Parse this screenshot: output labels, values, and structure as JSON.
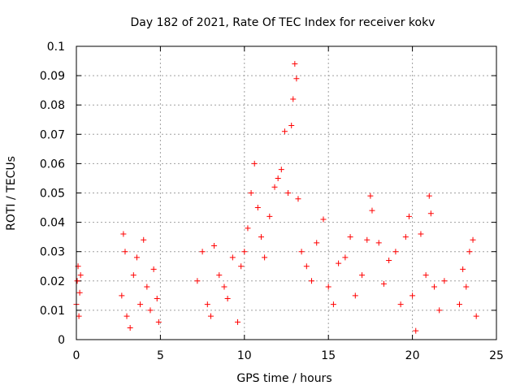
{
  "chart_data": {
    "type": "scatter",
    "title": "Day 182 of 2021, Rate Of TEC Index for receiver kokv",
    "xlabel": "GPS time / hours",
    "ylabel": "ROTI / TECUs",
    "xlim": [
      0,
      25
    ],
    "ylim": [
      0,
      0.1
    ],
    "xticks": [
      "0",
      "5",
      "10",
      "15",
      "20",
      "25"
    ],
    "yticks": [
      "0",
      "0.01",
      "0.02",
      "0.03",
      "0.04",
      "0.05",
      "0.06",
      "0.07",
      "0.08",
      "0.09",
      "0.1"
    ],
    "grid": true,
    "marker": "+",
    "color": "#ff0000",
    "series": [
      {
        "points": [
          [
            0.0,
            0.012
          ],
          [
            0.05,
            0.02
          ],
          [
            0.1,
            0.025
          ],
          [
            0.15,
            0.008
          ],
          [
            0.2,
            0.016
          ],
          [
            0.25,
            0.022
          ],
          [
            2.7,
            0.015
          ],
          [
            2.8,
            0.036
          ],
          [
            2.9,
            0.03
          ],
          [
            3.0,
            0.008
          ],
          [
            3.2,
            0.004
          ],
          [
            3.4,
            0.022
          ],
          [
            3.6,
            0.028
          ],
          [
            3.8,
            0.012
          ],
          [
            4.0,
            0.034
          ],
          [
            4.2,
            0.018
          ],
          [
            4.4,
            0.01
          ],
          [
            4.6,
            0.024
          ],
          [
            4.8,
            0.014
          ],
          [
            4.9,
            0.006
          ],
          [
            7.2,
            0.02
          ],
          [
            7.5,
            0.03
          ],
          [
            7.8,
            0.012
          ],
          [
            8.0,
            0.008
          ],
          [
            8.2,
            0.032
          ],
          [
            8.5,
            0.022
          ],
          [
            8.8,
            0.018
          ],
          [
            9.0,
            0.014
          ],
          [
            9.3,
            0.028
          ],
          [
            9.6,
            0.006
          ],
          [
            9.8,
            0.025
          ],
          [
            10.0,
            0.03
          ],
          [
            10.2,
            0.038
          ],
          [
            10.4,
            0.05
          ],
          [
            10.6,
            0.06
          ],
          [
            10.8,
            0.045
          ],
          [
            11.0,
            0.035
          ],
          [
            11.2,
            0.028
          ],
          [
            11.5,
            0.042
          ],
          [
            11.8,
            0.052
          ],
          [
            12.0,
            0.055
          ],
          [
            12.2,
            0.058
          ],
          [
            12.4,
            0.071
          ],
          [
            12.6,
            0.05
          ],
          [
            12.8,
            0.073
          ],
          [
            12.9,
            0.082
          ],
          [
            13.0,
            0.094
          ],
          [
            13.1,
            0.089
          ],
          [
            13.2,
            0.048
          ],
          [
            13.4,
            0.03
          ],
          [
            13.7,
            0.025
          ],
          [
            14.0,
            0.02
          ],
          [
            14.3,
            0.033
          ],
          [
            14.7,
            0.041
          ],
          [
            15.0,
            0.018
          ],
          [
            15.3,
            0.012
          ],
          [
            15.6,
            0.026
          ],
          [
            16.0,
            0.028
          ],
          [
            16.3,
            0.035
          ],
          [
            16.6,
            0.015
          ],
          [
            17.0,
            0.022
          ],
          [
            17.3,
            0.034
          ],
          [
            17.5,
            0.049
          ],
          [
            17.6,
            0.044
          ],
          [
            18.0,
            0.033
          ],
          [
            18.3,
            0.019
          ],
          [
            18.6,
            0.027
          ],
          [
            19.0,
            0.03
          ],
          [
            19.3,
            0.012
          ],
          [
            19.6,
            0.035
          ],
          [
            19.8,
            0.042
          ],
          [
            20.0,
            0.015
          ],
          [
            20.2,
            0.003
          ],
          [
            20.5,
            0.036
          ],
          [
            20.8,
            0.022
          ],
          [
            21.0,
            0.049
          ],
          [
            21.1,
            0.043
          ],
          [
            21.3,
            0.018
          ],
          [
            21.6,
            0.01
          ],
          [
            21.9,
            0.02
          ],
          [
            22.8,
            0.012
          ],
          [
            23.0,
            0.024
          ],
          [
            23.2,
            0.018
          ],
          [
            23.4,
            0.03
          ],
          [
            23.6,
            0.034
          ],
          [
            23.8,
            0.008
          ]
        ]
      }
    ]
  }
}
